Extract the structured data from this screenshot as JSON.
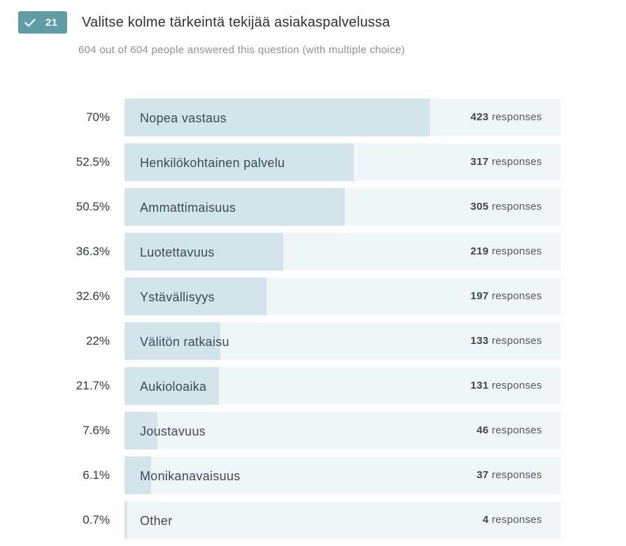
{
  "question": {
    "number": "21",
    "title": "Valitse kolme tärkeintä tekijää asiakaspalvelussa",
    "summary": "604 out of 604 people answered this question (with multiple choice)",
    "badge_icon": "check-icon",
    "badge_color": "#5f9ea4"
  },
  "responses_word": "responses",
  "colors": {
    "bar_fill": "#d3e5ea",
    "bar_track": "#f1f7f8"
  },
  "options": [
    {
      "percent": "70%",
      "label": "Nopea vastaus",
      "count": "423",
      "fill": 0.7
    },
    {
      "percent": "52.5%",
      "label": "Henkilökohtainen palvelu",
      "count": "317",
      "fill": 0.525
    },
    {
      "percent": "50.5%",
      "label": "Ammattimaisuus",
      "count": "305",
      "fill": 0.505
    },
    {
      "percent": "36.3%",
      "label": "Luotettavuus",
      "count": "219",
      "fill": 0.363
    },
    {
      "percent": "32.6%",
      "label": "Ystävällisyys",
      "count": "197",
      "fill": 0.326
    },
    {
      "percent": "22%",
      "label": "Välitön ratkaisu",
      "count": "133",
      "fill": 0.22
    },
    {
      "percent": "21.7%",
      "label": "Aukioloaika",
      "count": "131",
      "fill": 0.217
    },
    {
      "percent": "7.6%",
      "label": "Joustavuus",
      "count": "46",
      "fill": 0.076
    },
    {
      "percent": "6.1%",
      "label": "Monikanavaisuus",
      "count": "37",
      "fill": 0.061
    },
    {
      "percent": "0.7%",
      "label": "Other",
      "count": "4",
      "fill": 0.007
    }
  ]
}
